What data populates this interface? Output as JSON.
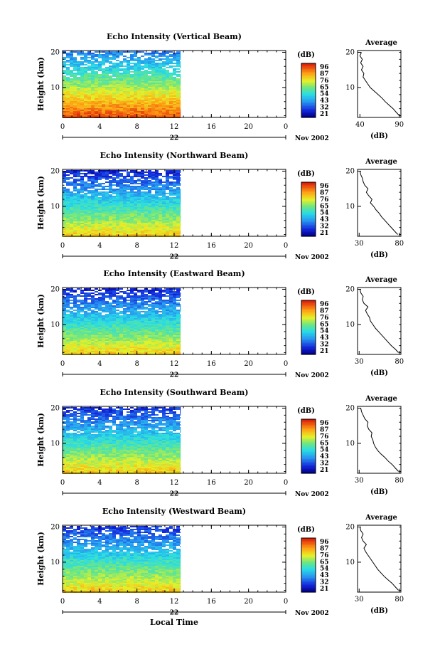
{
  "figure": {
    "date_label": "Nov 2002",
    "xlabel": "Local Time",
    "ylabel": "Height (km)",
    "colorbar_unit": "(dB)",
    "profile_title": "Average",
    "profile_xlabel": "(dB)",
    "date_day": "22"
  },
  "chart_data": [
    {
      "type": "heatmap",
      "title": "Echo Intensity (Vertical Beam)",
      "x_ticks": [
        "0",
        "4",
        "8",
        "12",
        "16",
        "20",
        "0"
      ],
      "y_ticks": [
        "20",
        "10"
      ],
      "xlim": [
        0,
        24
      ],
      "ylim": [
        1.5,
        20.5
      ],
      "data_end_hour": 12.7,
      "colorbar_ticks": [
        "96",
        "87",
        "76",
        "65",
        "54",
        "43",
        "32",
        "21"
      ],
      "colorbar_range": [
        21,
        96
      ],
      "surface_db": 92,
      "top_db": 38,
      "profile": {
        "title": "Average",
        "x_ticks": [
          "40",
          "90"
        ],
        "xlim": [
          37,
          92
        ],
        "heights": [
          2,
          3,
          4,
          5,
          6,
          7,
          8,
          9,
          10,
          11,
          12,
          13,
          14,
          15,
          16,
          17,
          18,
          19,
          20
        ],
        "values": [
          90,
          86,
          82,
          77,
          72,
          68,
          63,
          58,
          53,
          50,
          47,
          44,
          45,
          42,
          44,
          41,
          43,
          40,
          42
        ]
      }
    },
    {
      "type": "heatmap",
      "title": "Echo Intensity (Northward Beam)",
      "x_ticks": [
        "0",
        "4",
        "8",
        "12",
        "16",
        "20",
        "0"
      ],
      "y_ticks": [
        "20",
        "10"
      ],
      "xlim": [
        0,
        24
      ],
      "ylim": [
        1.5,
        20.5
      ],
      "data_end_hour": 12.7,
      "colorbar_ticks": [
        "96",
        "87",
        "76",
        "65",
        "54",
        "43",
        "32",
        "21"
      ],
      "colorbar_range": [
        21,
        96
      ],
      "surface_db": 78,
      "top_db": 28,
      "profile": {
        "title": "Average",
        "x_ticks": [
          "30",
          "80"
        ],
        "xlim": [
          28,
          82
        ],
        "heights": [
          2,
          3,
          4,
          5,
          6,
          7,
          8,
          9,
          10,
          11,
          12,
          13,
          14,
          15,
          16,
          17,
          18,
          19,
          20
        ],
        "values": [
          78,
          74,
          70,
          66,
          62,
          58,
          55,
          51,
          48,
          44,
          46,
          42,
          39,
          41,
          37,
          35,
          34,
          32,
          31
        ]
      }
    },
    {
      "type": "heatmap",
      "title": "Echo Intensity (Eastward Beam)",
      "x_ticks": [
        "0",
        "4",
        "8",
        "12",
        "16",
        "20",
        "0"
      ],
      "y_ticks": [
        "20",
        "10"
      ],
      "xlim": [
        0,
        24
      ],
      "ylim": [
        1.5,
        20.5
      ],
      "data_end_hour": 12.7,
      "colorbar_ticks": [
        "96",
        "87",
        "76",
        "65",
        "54",
        "43",
        "32",
        "21"
      ],
      "colorbar_range": [
        21,
        96
      ],
      "surface_db": 78,
      "top_db": 28,
      "profile": {
        "title": "Average",
        "x_ticks": [
          "30",
          "80"
        ],
        "xlim": [
          28,
          82
        ],
        "heights": [
          2,
          3,
          4,
          5,
          6,
          7,
          8,
          9,
          10,
          11,
          12,
          13,
          14,
          15,
          16,
          17,
          18,
          19,
          20
        ],
        "values": [
          79,
          75,
          70,
          66,
          62,
          58,
          54,
          50,
          47,
          44,
          43,
          40,
          38,
          41,
          36,
          34,
          35,
          32,
          31
        ]
      }
    },
    {
      "type": "heatmap",
      "title": "Echo Intensity (Southward Beam)",
      "x_ticks": [
        "0",
        "4",
        "8",
        "12",
        "16",
        "20",
        "0"
      ],
      "y_ticks": [
        "20",
        "10"
      ],
      "xlim": [
        0,
        24
      ],
      "ylim": [
        1.5,
        20.5
      ],
      "data_end_hour": 12.7,
      "colorbar_ticks": [
        "96",
        "87",
        "76",
        "65",
        "54",
        "43",
        "32",
        "21"
      ],
      "colorbar_range": [
        21,
        96
      ],
      "surface_db": 78,
      "top_db": 30,
      "profile": {
        "title": "Average",
        "x_ticks": [
          "30",
          "80"
        ],
        "xlim": [
          28,
          82
        ],
        "heights": [
          2,
          3,
          4,
          5,
          6,
          7,
          8,
          9,
          10,
          11,
          12,
          13,
          14,
          15,
          16,
          17,
          18,
          19,
          20
        ],
        "values": [
          79,
          75,
          71,
          66,
          62,
          57,
          53,
          50,
          48,
          47,
          45,
          46,
          42,
          40,
          41,
          37,
          35,
          33,
          32
        ]
      }
    },
    {
      "type": "heatmap",
      "title": "Echo Intensity (Westward Beam)",
      "x_ticks": [
        "0",
        "4",
        "8",
        "12",
        "16",
        "20",
        "0"
      ],
      "y_ticks": [
        "20",
        "10"
      ],
      "xlim": [
        0,
        24
      ],
      "ylim": [
        1.5,
        20.5
      ],
      "data_end_hour": 12.7,
      "colorbar_ticks": [
        "96",
        "87",
        "76",
        "65",
        "54",
        "43",
        "32",
        "21"
      ],
      "colorbar_range": [
        21,
        96
      ],
      "surface_db": 78,
      "top_db": 30,
      "profile": {
        "title": "Average",
        "x_ticks": [
          "30",
          "80"
        ],
        "xlim": [
          28,
          82
        ],
        "heights": [
          2,
          3,
          4,
          5,
          6,
          7,
          8,
          9,
          10,
          11,
          12,
          13,
          14,
          15,
          16,
          17,
          18,
          19,
          20
        ],
        "values": [
          79,
          75,
          71,
          66,
          61,
          57,
          53,
          50,
          47,
          44,
          41,
          38,
          36,
          39,
          35,
          33,
          35,
          32,
          31
        ]
      }
    }
  ]
}
